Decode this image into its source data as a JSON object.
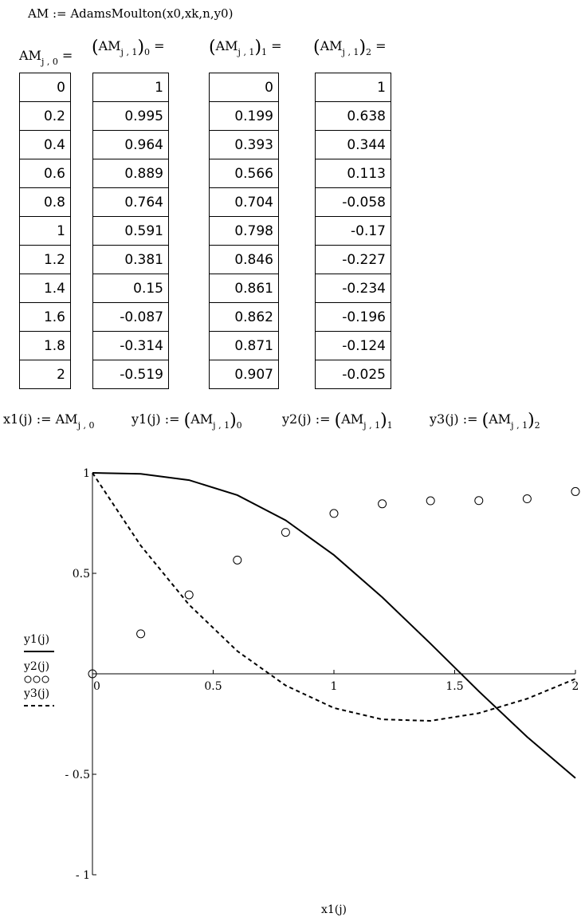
{
  "definition": "AM := AdamsMoulton(x0,xk,n,y0)",
  "headers": {
    "col0": {
      "name": "AM",
      "sub": "j , 0",
      "suffix": " ="
    },
    "col1": {
      "open": "(",
      "name": "AM",
      "sub": "j , 1",
      "close": ")",
      "sub2": "0",
      "suffix": " ="
    },
    "col2": {
      "open": "(",
      "name": "AM",
      "sub": "j , 1",
      "close": ")",
      "sub2": "1",
      "suffix": " ="
    },
    "col3": {
      "open": "(",
      "name": "AM",
      "sub": "j , 1",
      "close": ")",
      "sub2": "2",
      "suffix": " ="
    }
  },
  "table": {
    "x": [
      "0",
      "0.2",
      "0.4",
      "0.6",
      "0.8",
      "1",
      "1.2",
      "1.4",
      "1.6",
      "1.8",
      "2"
    ],
    "y1": [
      "1",
      "0.995",
      "0.964",
      "0.889",
      "0.764",
      "0.591",
      "0.381",
      "0.15",
      "-0.087",
      "-0.314",
      "-0.519"
    ],
    "y2": [
      "0",
      "0.199",
      "0.393",
      "0.566",
      "0.704",
      "0.798",
      "0.846",
      "0.861",
      "0.862",
      "0.871",
      "0.907"
    ],
    "y3": [
      "1",
      "0.638",
      "0.344",
      "0.113",
      "-0.058",
      "-0.17",
      "-0.227",
      "-0.234",
      "-0.196",
      "-0.124",
      "-0.025"
    ]
  },
  "definitions2": {
    "x1": {
      "lhs": "x1(j) := ",
      "name": "AM",
      "sub": "j , 0"
    },
    "y1": {
      "lhs": "y1(j) := ",
      "open": "(",
      "name": "AM",
      "sub": "j , 1",
      "close": ")",
      "sub2": "0"
    },
    "y2": {
      "lhs": "y2(j) := ",
      "open": "(",
      "name": "AM",
      "sub": "j , 1",
      "close": ")",
      "sub2": "1"
    },
    "y3": {
      "lhs": "y3(j) := ",
      "open": "(",
      "name": "AM",
      "sub": "j , 1",
      "close": ")",
      "sub2": "2"
    }
  },
  "chart_data": {
    "type": "line",
    "x": [
      0,
      0.2,
      0.4,
      0.6,
      0.8,
      1,
      1.2,
      1.4,
      1.6,
      1.8,
      2
    ],
    "series": [
      {
        "name": "y1(j)",
        "style": "solid",
        "values": [
          1,
          0.995,
          0.964,
          0.889,
          0.764,
          0.591,
          0.381,
          0.15,
          -0.087,
          -0.314,
          -0.519
        ]
      },
      {
        "name": "y2(j)",
        "style": "circles",
        "values": [
          0,
          0.199,
          0.393,
          0.566,
          0.704,
          0.798,
          0.846,
          0.861,
          0.862,
          0.871,
          0.907
        ]
      },
      {
        "name": "y3(j)",
        "style": "dashed",
        "values": [
          1,
          0.638,
          0.344,
          0.113,
          -0.058,
          -0.17,
          -0.227,
          -0.234,
          -0.196,
          -0.124,
          -0.025
        ]
      }
    ],
    "xlim": [
      0,
      2
    ],
    "ylim": [
      -1,
      1
    ],
    "xticks": [
      "0",
      "0.5",
      "1",
      "1.5",
      "2"
    ],
    "yticks": [
      "1",
      "0.5",
      "- 0.5",
      "- 1"
    ],
    "xlabel": "x1(j)",
    "legend": [
      "y1(j)",
      "y2(j)",
      "y3(j)"
    ],
    "legend_placement": "left",
    "grid": false
  }
}
